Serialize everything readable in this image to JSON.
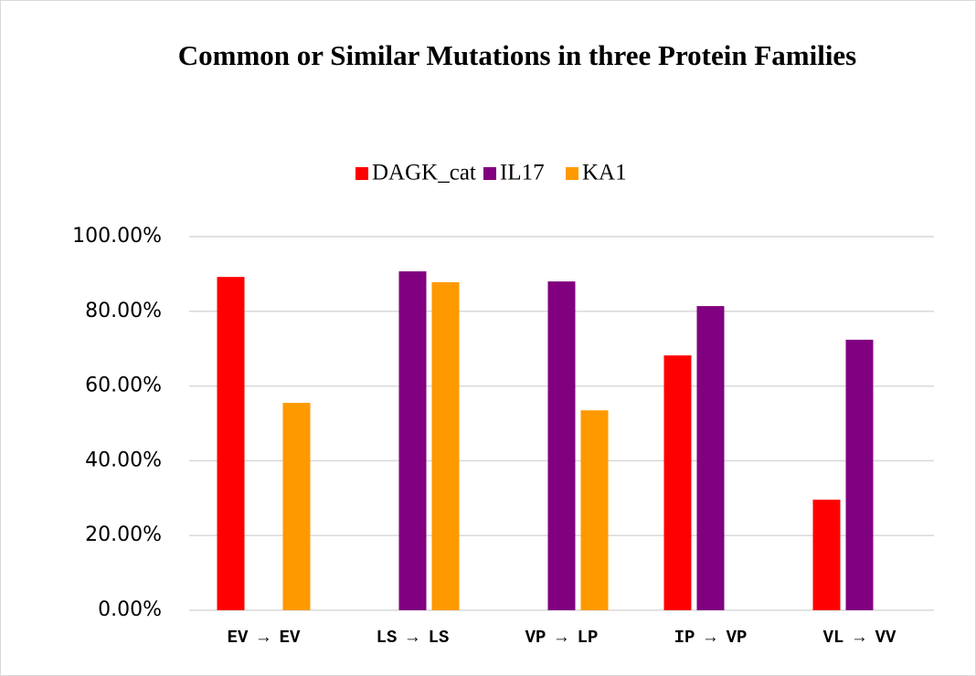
{
  "chart_data": {
    "type": "bar",
    "title": "Common or Similar Mutations in three Protein Families",
    "categories": [
      "EV → EV",
      "LS → LS",
      "VP → LP",
      "IP → VP",
      "VL → VV"
    ],
    "series": [
      {
        "name": "DAGK_cat",
        "color": "#ff0000",
        "values": [
          89.2,
          null,
          null,
          68.2,
          29.6
        ]
      },
      {
        "name": "IL17",
        "color": "#800080",
        "values": [
          null,
          90.7,
          88.0,
          81.4,
          72.4
        ]
      },
      {
        "name": "KA1",
        "color": "#ff9900",
        "values": [
          55.5,
          87.8,
          53.5,
          null,
          null
        ]
      }
    ],
    "ylim": [
      0,
      100
    ],
    "yticks": [
      {
        "value": 0,
        "label": "0.00%"
      },
      {
        "value": 20,
        "label": "20.00%"
      },
      {
        "value": 40,
        "label": "40.00%"
      },
      {
        "value": 60,
        "label": "60.00%"
      },
      {
        "value": 80,
        "label": "80.00%"
      },
      {
        "value": 100,
        "label": "100.00%"
      }
    ],
    "grid": true,
    "legend": "top"
  }
}
